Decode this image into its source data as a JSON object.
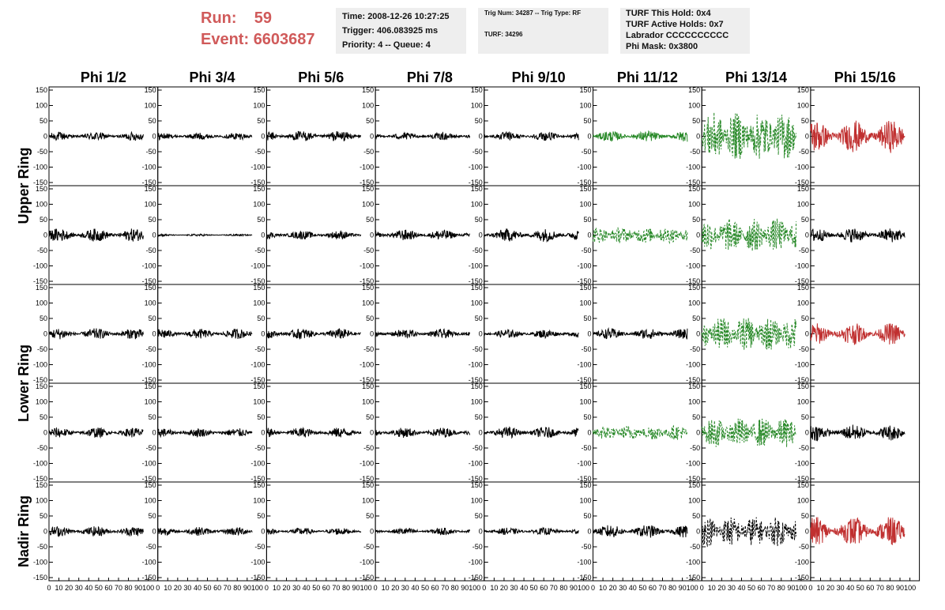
{
  "header": {
    "run_label": "Run:",
    "run_value": "59",
    "event_label": "Event:",
    "event_value": "6603687"
  },
  "trigger_info": {
    "time": "Time: 2008-12-26 10:27:25",
    "trigger": "Trigger: 406.083925 ms",
    "priority": "Priority: 4 -- Queue: 4"
  },
  "trig_num_info": {
    "trig_num": "Trig Num: 34287 -- Trig Type: RF",
    "turf": "TURF: 34296"
  },
  "turf_info": {
    "this_hold": "TURF This Hold: 0x4",
    "active_holds": "TURF Active Holds: 0x7",
    "labrador": "Labrador CCCCCCCCCC",
    "phi_mask": "Phi Mask: 0x3800"
  },
  "colors": {
    "normal_trace": "#000000",
    "phi_mask_trace": "#2a8a2a",
    "hold_trace": "#c03030",
    "info_box_bg": "#eeeeee",
    "run_text": "#d05a5a"
  },
  "chart_data": {
    "type": "line",
    "columns": [
      "Phi 1/2",
      "Phi 3/4",
      "Phi 5/6",
      "Phi 7/8",
      "Phi 9/10",
      "Phi 11/12",
      "Phi 13/14",
      "Phi 15/16"
    ],
    "row_groups": [
      "Upper Ring",
      "Lower Ring",
      "Nadir Ring"
    ],
    "xlim": [
      0,
      100
    ],
    "ylim": [
      -150,
      150
    ],
    "y_ticks": [
      -150,
      -100,
      -50,
      0,
      50,
      100,
      150
    ],
    "x_ticks": [
      0,
      10,
      20,
      30,
      40,
      50,
      60,
      70,
      80,
      90,
      100
    ],
    "panels": [
      [
        {
          "amp": 12,
          "style": "solid",
          "color": "normal"
        },
        {
          "amp": 10,
          "style": "solid",
          "color": "normal"
        },
        {
          "amp": 15,
          "style": "solid",
          "color": "normal"
        },
        {
          "amp": 10,
          "style": "solid",
          "color": "normal"
        },
        {
          "amp": 12,
          "style": "solid",
          "color": "normal"
        },
        {
          "amp": 15,
          "style": "solid",
          "color": "phi_mask"
        },
        {
          "amp": 65,
          "style": "dashed",
          "color": "phi_mask"
        },
        {
          "amp": 45,
          "style": "solid",
          "color": "hold"
        }
      ],
      [
        {
          "amp": 18,
          "style": "solid",
          "color": "normal"
        },
        {
          "amp": 3,
          "style": "solid",
          "color": "normal"
        },
        {
          "amp": 12,
          "style": "solid",
          "color": "normal"
        },
        {
          "amp": 15,
          "style": "solid",
          "color": "normal"
        },
        {
          "amp": 18,
          "style": "solid",
          "color": "normal"
        },
        {
          "amp": 22,
          "style": "dashed",
          "color": "phi_mask"
        },
        {
          "amp": 45,
          "style": "dashed",
          "color": "phi_mask"
        },
        {
          "amp": 20,
          "style": "solid",
          "color": "normal"
        }
      ],
      [
        {
          "amp": 15,
          "style": "solid",
          "color": "normal"
        },
        {
          "amp": 14,
          "style": "solid",
          "color": "normal"
        },
        {
          "amp": 15,
          "style": "solid",
          "color": "normal"
        },
        {
          "amp": 13,
          "style": "solid",
          "color": "normal"
        },
        {
          "amp": 12,
          "style": "solid",
          "color": "normal"
        },
        {
          "amp": 15,
          "style": "solid",
          "color": "normal"
        },
        {
          "amp": 45,
          "style": "dashed",
          "color": "phi_mask"
        },
        {
          "amp": 30,
          "style": "solid",
          "color": "hold"
        }
      ],
      [
        {
          "amp": 14,
          "style": "solid",
          "color": "normal"
        },
        {
          "amp": 12,
          "style": "solid",
          "color": "normal"
        },
        {
          "amp": 14,
          "style": "solid",
          "color": "normal"
        },
        {
          "amp": 14,
          "style": "solid",
          "color": "normal"
        },
        {
          "amp": 16,
          "style": "solid",
          "color": "normal"
        },
        {
          "amp": 20,
          "style": "dashed",
          "color": "phi_mask"
        },
        {
          "amp": 40,
          "style": "dashed",
          "color": "phi_mask"
        },
        {
          "amp": 22,
          "style": "solid",
          "color": "normal"
        }
      ],
      [
        {
          "amp": 14,
          "style": "solid",
          "color": "normal"
        },
        {
          "amp": 12,
          "style": "solid",
          "color": "normal"
        },
        {
          "amp": 10,
          "style": "solid",
          "color": "normal"
        },
        {
          "amp": 10,
          "style": "solid",
          "color": "normal"
        },
        {
          "amp": 10,
          "style": "solid",
          "color": "normal"
        },
        {
          "amp": 18,
          "style": "solid",
          "color": "normal"
        },
        {
          "amp": 40,
          "style": "dashed",
          "color": "normal"
        },
        {
          "amp": 40,
          "style": "solid",
          "color": "hold"
        }
      ]
    ]
  }
}
